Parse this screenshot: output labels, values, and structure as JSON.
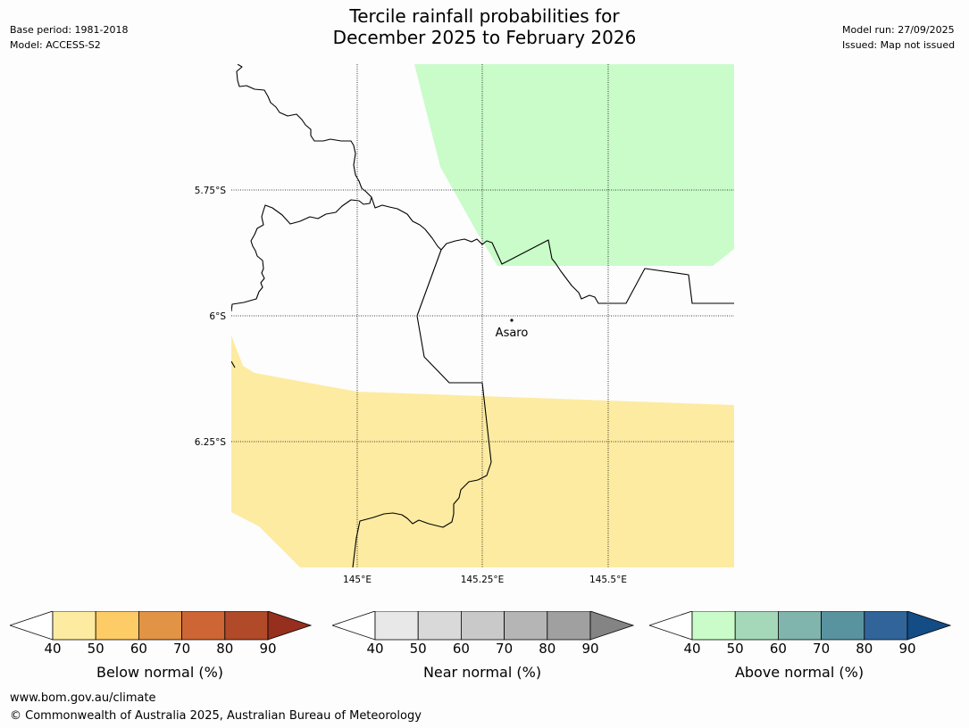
{
  "header": {
    "title_line1": "Tercile rainfall probabilities for",
    "title_line2": "December 2025 to February 2026",
    "base_period": "Base period: 1981-2018",
    "model": "Model: ACCESS-S2",
    "model_run": "Model run: 27/09/2025",
    "issued": "Issued: Map not issued"
  },
  "map": {
    "lat_labels": [
      "5.75°S",
      "6°S",
      "6.25°S"
    ],
    "lon_labels": [
      "145°E",
      "145.25°E",
      "145.5°E"
    ],
    "place": {
      "name": "Asaro",
      "lon": 145.3,
      "lat": -6.01
    },
    "regions": [
      {
        "category": "above_normal",
        "probability_band": "40-50",
        "color": "#c9fcc9"
      },
      {
        "category": "below_normal",
        "probability_band": "40-50",
        "color": "#fdeba1"
      }
    ]
  },
  "legends": [
    {
      "name": "Below normal (%)",
      "ticks": [
        "40",
        "50",
        "60",
        "70",
        "80",
        "90"
      ],
      "colors": [
        "#fdeba1",
        "#fdcc66",
        "#e19446",
        "#cd6634",
        "#b04a29",
        "#962f1e"
      ]
    },
    {
      "name": "Near normal (%)",
      "ticks": [
        "40",
        "50",
        "60",
        "70",
        "80",
        "90"
      ],
      "colors": [
        "#e8e8e8",
        "#d9d9d9",
        "#c9c9c9",
        "#b5b5b5",
        "#a0a0a0",
        "#848484"
      ]
    },
    {
      "name": "Above normal (%)",
      "ticks": [
        "40",
        "50",
        "60",
        "70",
        "80",
        "90"
      ],
      "colors": [
        "#c9fcc9",
        "#a5d8b9",
        "#80b5ad",
        "#5a93a0",
        "#316599",
        "#144c85"
      ]
    }
  ],
  "footer": {
    "url": "www.bom.gov.au/climate",
    "copyright": "© Commonwealth of Australia 2025, Australian Bureau of Meteorology"
  }
}
